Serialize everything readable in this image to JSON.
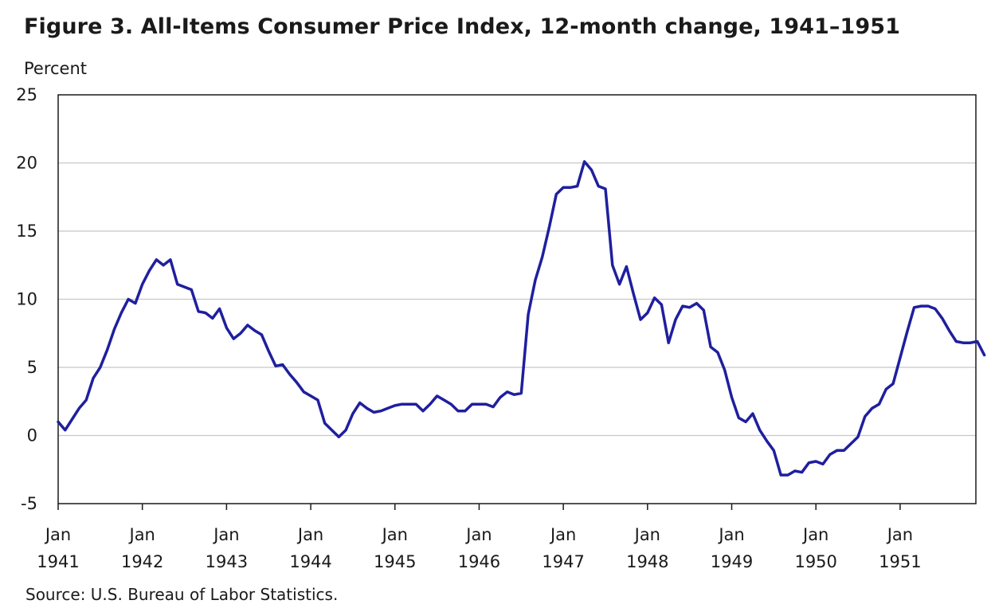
{
  "chart_data": {
    "type": "line",
    "title": "Figure 3. All-Items Consumer Price Index, 12-month change, 1941–1951",
    "ylabel": "Percent",
    "xlabel": "",
    "source": "Source: U.S. Bureau of Labor Statistics.",
    "ylim": [
      -5,
      25
    ],
    "yticks": [
      "-5",
      "0",
      "5",
      "10",
      "15",
      "20",
      "25"
    ],
    "ytick_values": [
      -5,
      0,
      5,
      10,
      15,
      20,
      25
    ],
    "xlim": [
      1941.0,
      1951.9
    ],
    "xticks": [
      {
        "month": "Jan",
        "year": "1941",
        "value": 1941.0
      },
      {
        "month": "Jan",
        "year": "1942",
        "value": 1942.0
      },
      {
        "month": "Jan",
        "year": "1943",
        "value": 1943.0
      },
      {
        "month": "Jan",
        "year": "1944",
        "value": 1944.0
      },
      {
        "month": "Jan",
        "year": "1945",
        "value": 1945.0
      },
      {
        "month": "Jan",
        "year": "1946",
        "value": 1946.0
      },
      {
        "month": "Jan",
        "year": "1947",
        "value": 1947.0
      },
      {
        "month": "Jan",
        "year": "1948",
        "value": 1948.0
      },
      {
        "month": "Jan",
        "year": "1949",
        "value": 1949.0
      },
      {
        "month": "Jan",
        "year": "1950",
        "value": 1950.0
      },
      {
        "month": "Jan",
        "year": "1951",
        "value": 1951.0
      }
    ],
    "grid": true,
    "series": [
      {
        "name": "CPI 12-month change",
        "color": "#1f1f9e",
        "start": "Jan 1941",
        "frequency": "monthly",
        "values": [
          1.0,
          0.4,
          1.2,
          2.0,
          2.6,
          4.2,
          5.0,
          6.3,
          7.8,
          9.0,
          10.0,
          9.7,
          11.1,
          12.1,
          12.9,
          12.5,
          12.9,
          11.1,
          10.9,
          10.7,
          9.1,
          9.0,
          8.6,
          9.3,
          7.9,
          7.1,
          7.5,
          8.1,
          7.7,
          7.4,
          6.2,
          5.1,
          5.2,
          4.5,
          3.9,
          3.2,
          2.9,
          2.6,
          0.9,
          0.4,
          -0.1,
          0.4,
          1.6,
          2.4,
          2.0,
          1.7,
          1.8,
          2.0,
          2.2,
          2.3,
          2.3,
          2.3,
          1.8,
          2.3,
          2.9,
          2.6,
          2.3,
          1.8,
          1.8,
          2.3,
          2.3,
          2.3,
          2.1,
          2.8,
          3.2,
          3.0,
          3.1,
          8.9,
          11.4,
          13.1,
          15.3,
          17.7,
          18.2,
          18.2,
          18.3,
          20.1,
          19.5,
          18.3,
          18.1,
          12.5,
          11.1,
          12.4,
          10.4,
          8.5,
          9.0,
          10.1,
          9.6,
          6.8,
          8.5,
          9.5,
          9.4,
          9.7,
          9.2,
          6.5,
          6.1,
          4.8,
          2.8,
          1.3,
          1.0,
          1.6,
          0.4,
          -0.4,
          -1.1,
          -2.9,
          -2.9,
          -2.6,
          -2.7,
          -2.0,
          -1.9,
          -2.1,
          -1.4,
          -1.1,
          -1.1,
          -0.6,
          -0.1,
          1.4,
          2.0,
          2.3,
          3.4,
          3.8,
          5.7,
          7.6,
          9.4,
          9.5,
          9.5,
          9.3,
          8.6,
          7.7,
          6.9,
          6.8,
          6.8,
          6.9,
          5.9
        ]
      }
    ]
  }
}
